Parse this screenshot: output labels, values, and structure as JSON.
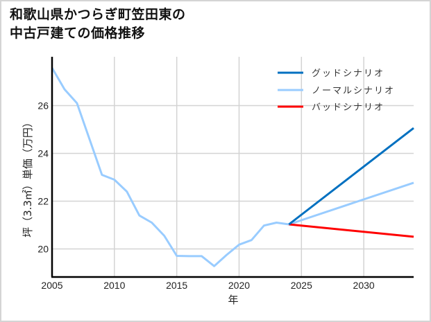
{
  "title": {
    "line1": "和歌山県かつらぎ町笠田東の",
    "line2": "中古戸建ての価格推移"
  },
  "chart_data": {
    "type": "line",
    "title": "和歌山県かつらぎ町笠田東の中古戸建ての価格推移",
    "xlabel": "年",
    "ylabel": "坪（3.3㎡）単価（万円）",
    "xlim": [
      2005,
      2034
    ],
    "ylim": [
      18.9,
      28.0
    ],
    "xticks": [
      2005,
      2010,
      2015,
      2020,
      2025,
      2030
    ],
    "yticks": [
      20,
      22,
      24,
      26
    ],
    "grid": true,
    "legend_position": "upper right",
    "series": [
      {
        "name": "グッドシナリオ",
        "color": "#0070c0",
        "x": [
          2024,
          2034
        ],
        "values": [
          21.03,
          25.06
        ]
      },
      {
        "name": "ノーマルシナリオ",
        "color": "#99ccff",
        "x": [
          2005,
          2006,
          2007,
          2008,
          2009,
          2010,
          2011,
          2012,
          2013,
          2014,
          2015,
          2016,
          2017,
          2018,
          2019,
          2020,
          2021,
          2022,
          2023,
          2024,
          2034
        ],
        "values": [
          27.58,
          26.68,
          26.1,
          24.6,
          23.1,
          22.9,
          22.4,
          21.4,
          21.1,
          20.55,
          19.71,
          19.7,
          19.7,
          19.28,
          19.75,
          20.18,
          20.37,
          20.98,
          21.1,
          21.03,
          22.77
        ]
      },
      {
        "name": "バッドシナリオ",
        "color": "#ff0000",
        "x": [
          2024,
          2034
        ],
        "values": [
          21.03,
          20.51
        ]
      }
    ]
  }
}
